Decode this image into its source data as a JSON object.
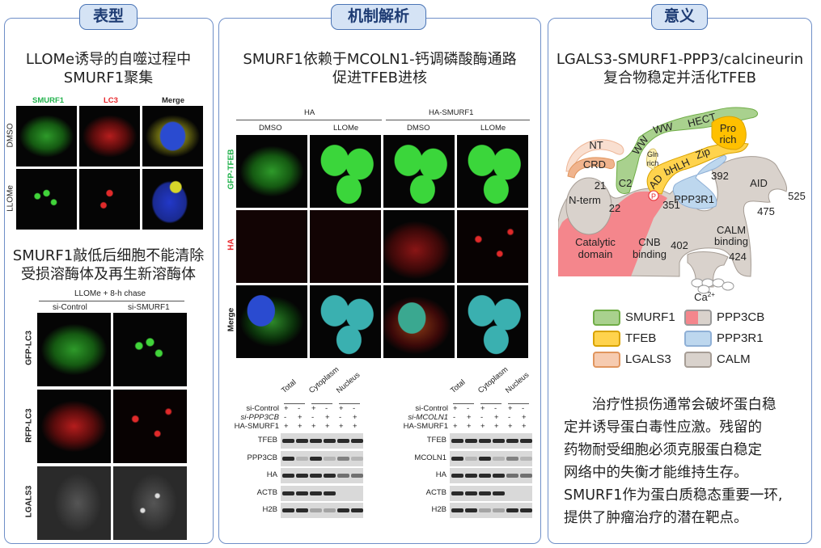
{
  "panels": {
    "phenotype": {
      "header": "表型",
      "title_lines": [
        "LLOMe诱导的自噬过程中",
        "SMURF1聚集"
      ],
      "channels": [
        "SMURF1",
        "LC3",
        "Merge"
      ],
      "channel_colors": [
        "#22b24c",
        "#e8262b",
        "#111111"
      ],
      "conditions": [
        "DMSO",
        "LLOMe"
      ],
      "subtitle_lines": [
        "SMURF1敲低后细胞不能清除",
        "受损溶酶体及再生新溶酶体"
      ],
      "chase_label": "LLOMe + 8-h chase",
      "groups": [
        "si-Control",
        "si-SMURF1"
      ],
      "rows": [
        "GFP-LC3",
        "RFP-LC3",
        "LGALS3"
      ]
    },
    "mechanism": {
      "header": "机制解析",
      "title_lines": [
        "SMURF1依赖于MCOLN1-钙调磷酸酶通路",
        "促进TFEB进核"
      ],
      "groups": [
        "HA",
        "HA-SMURF1"
      ],
      "treatments": [
        "DMSO",
        "LLOMe",
        "DMSO",
        "LLOMe"
      ],
      "rows": [
        "GFP-TFEB",
        "HA",
        "Merge"
      ],
      "row_colors": [
        "#22b24c",
        "#e8262b",
        "#111111"
      ],
      "blot_left": {
        "fractions": [
          "Total",
          "Cytoplasm",
          "Nucleus"
        ],
        "conditions": [
          {
            "label": "si-Control",
            "lanes": [
              "+",
              "-",
              "+",
              "-",
              "+",
              "-"
            ]
          },
          {
            "label": "si-PPP3CB",
            "lanes": [
              "-",
              "+",
              "-",
              "+",
              "-",
              "+"
            ]
          },
          {
            "label": "HA-SMURF1",
            "lanes": [
              "+",
              "+",
              "+",
              "+",
              "+",
              "+"
            ]
          }
        ],
        "proteins": [
          "TFEB",
          "PPP3CB",
          "HA",
          "ACTB",
          "H2B"
        ]
      },
      "blot_right": {
        "fractions": [
          "Total",
          "Cytoplasm",
          "Nucleus"
        ],
        "conditions": [
          {
            "label": "si-Control",
            "lanes": [
              "+",
              "-",
              "+",
              "-",
              "+",
              "-"
            ]
          },
          {
            "label": "si-MCOLN1",
            "lanes": [
              "-",
              "+",
              "-",
              "+",
              "-",
              "+"
            ]
          },
          {
            "label": "HA-SMURF1",
            "lanes": [
              "+",
              "+",
              "+",
              "+",
              "+",
              "+"
            ]
          }
        ],
        "proteins": [
          "TFEB",
          "MCOLN1",
          "HA",
          "ACTB",
          "H2B"
        ]
      }
    },
    "significance": {
      "header": "意义",
      "title_lines": [
        "LGALS3-SMURF1-PPP3/calcineurin",
        "复合物稳定并活化TFEB"
      ],
      "diagram": {
        "NT": "NT",
        "CRD": "CRD",
        "C2": "C2",
        "WW1": "WW",
        "WW2": "WW",
        "HECT": "HECT",
        "Gln": "Gln",
        "rich1": "rich",
        "AD": "AD",
        "bHLH": "bHLH",
        "Zip": "Zip",
        "Pro": "Pro",
        "rich2": "rich",
        "n21": "21",
        "Nterm": "N-term",
        "n22": "22",
        "P": "P",
        "n351": "351",
        "PPP3R1": "PPP3R1",
        "n392": "392",
        "AID": "AID",
        "n525": "525",
        "n475": "475",
        "cat1": "Catalytic",
        "cat2": "domain",
        "cnb1": "CNB",
        "cnb2": "binding",
        "n402": "402",
        "calm1": "CALM",
        "calm2": "binding",
        "n424": "424",
        "Ca": "Ca",
        "Ca_sup": "2+"
      },
      "legend": [
        {
          "label": "SMURF1",
          "color": "#a9d18e",
          "border": "#70ad47"
        },
        {
          "label": "PPP3CB",
          "color": "#f4868c",
          "color2": "#d9d2cc",
          "border": "#999"
        },
        {
          "label": "TFEB",
          "color": "#ffd34d",
          "border": "#d9a300"
        },
        {
          "label": "PPP3R1",
          "color": "#bdd7ee",
          "border": "#8fb0d6"
        },
        {
          "label": "LGALS3",
          "color": "#f6cbb0",
          "border": "#e0955e"
        },
        {
          "label": "CALM",
          "color": "#d9d2cc",
          "border": "#a69d95"
        }
      ],
      "paragraph": [
        "治疗性损伤通常会破坏蛋白稳",
        "定并诱导蛋白毒性应激。残留的",
        "药物耐受细胞必须克服蛋白稳定",
        "网络中的失衡才能维持生存。",
        "SMURF1作为蛋白质稳态重要一环,",
        "提供了肿瘤治疗的潜在靶点。"
      ]
    }
  }
}
